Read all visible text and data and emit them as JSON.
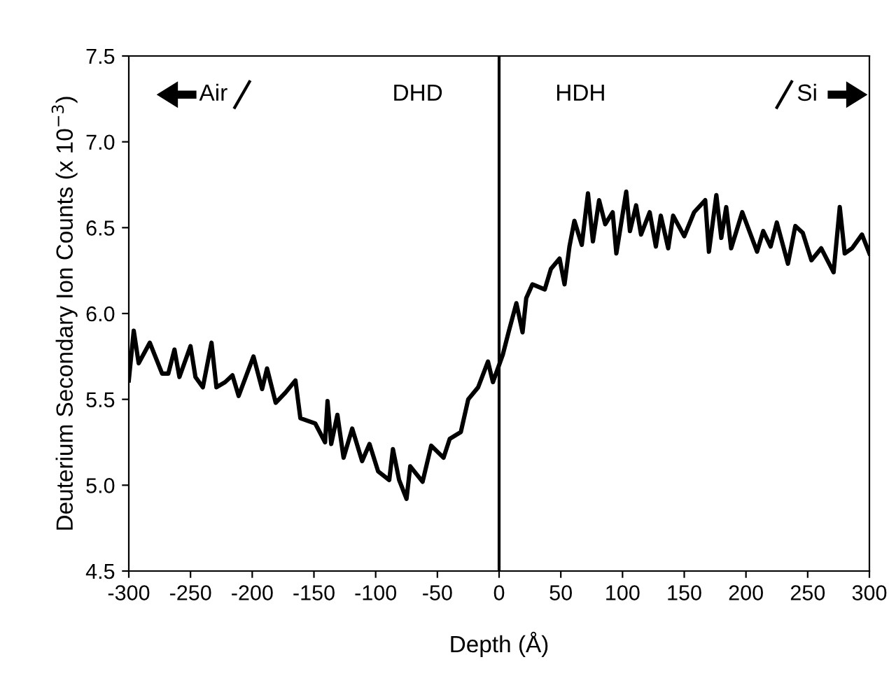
{
  "chart_data": {
    "type": "line",
    "xlabel": "Depth (Å)",
    "ylabel": "Deuterium Secondary Ion Counts (x 10$^{−3}$)",
    "annotations": [
      "Air",
      "DHD",
      "HDH",
      "Si"
    ],
    "x": [
      -300,
      -296,
      -292,
      -283,
      -273,
      -268,
      -263,
      -259,
      -250,
      -246,
      -240,
      -233,
      -229,
      -222,
      -216,
      -211,
      -199,
      -192,
      -188,
      -181,
      -173,
      -165,
      -161,
      -149,
      -141,
      -139,
      -136,
      -131,
      -126,
      -119,
      -111,
      -105,
      -98,
      -89,
      -86,
      -81,
      -75,
      -72,
      -62,
      -55,
      -45,
      -40,
      -31,
      -25,
      -17,
      -9,
      -5,
      0,
      3,
      8,
      14,
      19,
      22,
      27,
      37,
      42,
      49,
      53,
      57,
      61,
      67,
      72,
      76,
      81,
      86,
      92,
      95,
      103,
      106,
      111,
      115,
      122,
      127,
      131,
      137,
      141,
      150,
      158,
      167,
      170,
      176,
      180,
      184,
      188,
      197,
      209,
      214,
      220,
      225,
      234,
      240,
      246,
      253,
      261,
      271,
      276,
      280,
      286,
      294,
      300
    ],
    "series": [
      {
        "color": "#000000",
        "values": [
          5.61,
          5.9,
          5.71,
          5.83,
          5.65,
          5.65,
          5.79,
          5.63,
          5.81,
          5.63,
          5.57,
          5.83,
          5.57,
          5.6,
          5.64,
          5.52,
          5.75,
          5.56,
          5.68,
          5.48,
          5.54,
          5.61,
          5.39,
          5.36,
          5.25,
          5.49,
          5.24,
          5.41,
          5.16,
          5.33,
          5.14,
          5.24,
          5.08,
          5.03,
          5.21,
          5.03,
          4.92,
          5.11,
          5.02,
          5.23,
          5.16,
          5.27,
          5.31,
          5.5,
          5.57,
          5.72,
          5.6,
          5.7,
          5.76,
          5.9,
          6.06,
          5.89,
          6.09,
          6.17,
          6.14,
          6.26,
          6.32,
          6.17,
          6.39,
          6.54,
          6.4,
          6.7,
          6.42,
          6.66,
          6.52,
          6.59,
          6.35,
          6.71,
          6.48,
          6.63,
          6.46,
          6.59,
          6.39,
          6.57,
          6.38,
          6.57,
          6.45,
          6.59,
          6.66,
          6.36,
          6.69,
          6.44,
          6.62,
          6.38,
          6.59,
          6.36,
          6.48,
          6.39,
          6.53,
          6.29,
          6.51,
          6.47,
          6.31,
          6.38,
          6.24,
          6.62,
          6.35,
          6.38,
          6.46,
          6.35
        ]
      }
    ],
    "xlim": [
      -300,
      300
    ],
    "xticks": [
      -300,
      -250,
      -200,
      -150,
      -100,
      -50,
      0,
      50,
      100,
      150,
      200,
      250,
      300
    ],
    "ylim": [
      4.5,
      7.5
    ],
    "yticks": [
      4.5,
      {
        "value": 5,
        "label": "5.0"
      },
      5.5,
      {
        "value": 6,
        "label": "6.0"
      },
      6.5,
      {
        "value": 7,
        "label": "7.0"
      },
      7.5
    ],
    "ref_lines": [
      {
        "axis": "x",
        "value": 0,
        "color": "#000000"
      }
    ],
    "grid": false,
    "legend": false,
    "marker": "none",
    "line_style": "solid"
  }
}
